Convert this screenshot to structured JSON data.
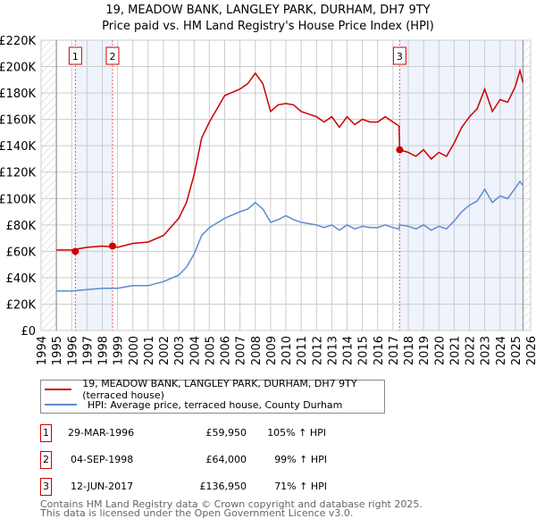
{
  "title": "19, MEADOW BANK, LANGLEY PARK, DURHAM, DH7 9TY",
  "subtitle": "Price paid vs. HM Land Registry's House Price Index (HPI)",
  "chart_data": {
    "type": "line",
    "title": "19, MEADOW BANK, LANGLEY PARK, DURHAM, DH7 9TY",
    "subtitle": "Price paid vs. HM Land Registry's House Price Index (HPI)",
    "xlim": [
      1994,
      2026
    ],
    "ylim": [
      0,
      220000
    ],
    "grid": true,
    "x_ticks": [
      "1994",
      "1995",
      "1996",
      "1997",
      "1998",
      "1999",
      "2000",
      "2001",
      "2002",
      "2003",
      "2004",
      "2005",
      "2006",
      "2007",
      "2008",
      "2009",
      "2010",
      "2011",
      "2012",
      "2013",
      "2014",
      "2015",
      "2016",
      "2017",
      "2018",
      "2019",
      "2020",
      "2021",
      "2022",
      "2023",
      "2024",
      "2025",
      "2026"
    ],
    "y_ticks": [
      "£0",
      "£20K",
      "£40K",
      "£60K",
      "£80K",
      "£100K",
      "£120K",
      "£140K",
      "£160K",
      "£180K",
      "£200K",
      "£220K"
    ],
    "x": [
      1995,
      1996,
      1997,
      1998,
      1999,
      2000,
      2001,
      2002,
      2003,
      2003.5,
      2004,
      2004.5,
      2005,
      2006,
      2007,
      2007.5,
      2008,
      2008.5,
      2009,
      2009.5,
      2010,
      2010.5,
      2011,
      2012,
      2012.5,
      2013,
      2013.5,
      2014,
      2014.5,
      2015,
      2015.5,
      2016,
      2016.5,
      2017,
      2017.4,
      2017.44,
      2018,
      2018.5,
      2019,
      2019.5,
      2020,
      2020.5,
      2021,
      2021.5,
      2022,
      2022.5,
      2023,
      2023.5,
      2024,
      2024.5,
      2025,
      2025.3,
      2025.5
    ],
    "series": [
      {
        "name": "19, MEADOW BANK, LANGLEY PARK, DURHAM, DH7 9TY (terraced house)",
        "color": "#cc0000",
        "values": [
          61000,
          61000,
          63000,
          64000,
          63000,
          66000,
          67000,
          72000,
          85000,
          97000,
          118000,
          146000,
          158000,
          178000,
          183000,
          187000,
          195000,
          187000,
          166000,
          171000,
          172000,
          171000,
          166000,
          162000,
          158000,
          162000,
          154000,
          162000,
          156000,
          160000,
          158000,
          158000,
          162000,
          158000,
          155000,
          136950,
          135000,
          132000,
          137000,
          130000,
          135000,
          132000,
          142000,
          154000,
          162000,
          168000,
          183000,
          166000,
          175000,
          173000,
          185000,
          197000,
          188000
        ]
      },
      {
        "name": "HPI: Average price, terraced house, County Durham",
        "color": "#5b8bd0",
        "values": [
          30000,
          30000,
          31000,
          32000,
          32000,
          34000,
          34000,
          37000,
          42000,
          48000,
          58000,
          72000,
          78000,
          85000,
          90000,
          92000,
          97000,
          92000,
          82000,
          84000,
          87000,
          84000,
          82000,
          80000,
          78000,
          80000,
          76000,
          80000,
          77000,
          79000,
          78000,
          78000,
          80000,
          78000,
          77000,
          80000,
          79000,
          77000,
          80000,
          76000,
          79000,
          77000,
          83000,
          90000,
          95000,
          98000,
          107000,
          97000,
          102000,
          100000,
          108000,
          113000,
          110000
        ]
      }
    ],
    "sales": [
      {
        "label": "1",
        "date": "29-MAR-1996",
        "x": 1996.24,
        "price": "£59,950",
        "value": 59950,
        "hpi": "105% ↑ HPI"
      },
      {
        "label": "2",
        "date": "04-SEP-1998",
        "x": 1998.67,
        "price": "£64,000",
        "value": 64000,
        "hpi": "99% ↑ HPI"
      },
      {
        "label": "3",
        "date": "12-JUN-2017",
        "x": 2017.44,
        "price": "£136,950",
        "value": 136950,
        "hpi": "71% ↑ HPI"
      }
    ],
    "legend_position": "below"
  },
  "legend": {
    "red": "19, MEADOW BANK, LANGLEY PARK, DURHAM, DH7 9TY (terraced house)",
    "blue": "HPI: Average price, terraced house, County Durham"
  },
  "footer": {
    "line1": "Contains HM Land Registry data © Crown copyright and database right 2025.",
    "line2": "This data is licensed under the Open Government Licence v3.0."
  }
}
